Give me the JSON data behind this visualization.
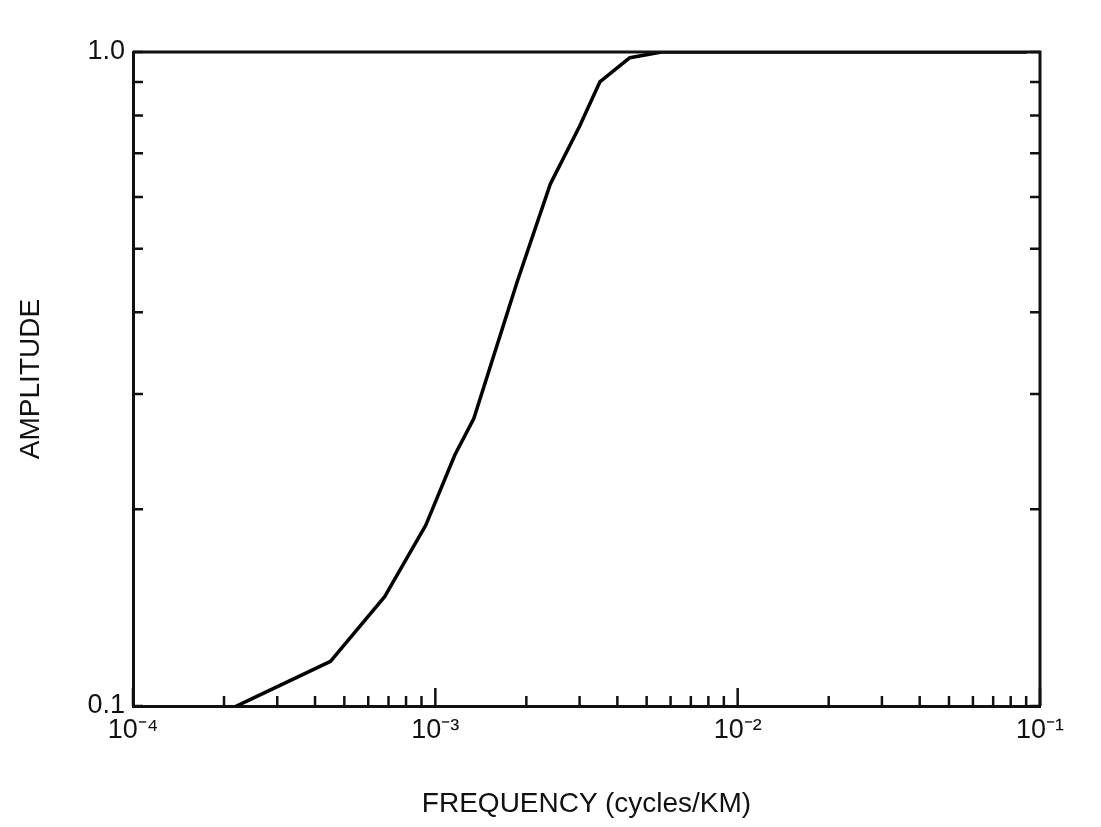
{
  "chart_data": {
    "type": "line",
    "xlabel": "FREQUENCY (cycles/KM)",
    "ylabel": "AMPLITUDE",
    "log": "xy",
    "grid": false,
    "legend": false,
    "marker": "none",
    "line_style": "solid",
    "xlim": [
      0.0001,
      0.1
    ],
    "ylim": [
      0.1,
      1
    ],
    "xticks": [
      {
        "value": 0.0001,
        "label": "10⁻⁴"
      },
      {
        "value": 0.0002,
        "label": null
      },
      {
        "value": 0.0003,
        "label": null
      },
      {
        "value": 0.0004,
        "label": null
      },
      {
        "value": 0.0005,
        "label": null
      },
      {
        "value": 0.0006,
        "label": null
      },
      {
        "value": 0.0007,
        "label": null
      },
      {
        "value": 0.0008,
        "label": null
      },
      {
        "value": 0.0009,
        "label": null
      },
      {
        "value": 0.001,
        "label": "10⁻³"
      },
      {
        "value": 0.002,
        "label": null
      },
      {
        "value": 0.003,
        "label": null
      },
      {
        "value": 0.004,
        "label": null
      },
      {
        "value": 0.005,
        "label": null
      },
      {
        "value": 0.006,
        "label": null
      },
      {
        "value": 0.007,
        "label": null
      },
      {
        "value": 0.008,
        "label": null
      },
      {
        "value": 0.009,
        "label": null
      },
      {
        "value": 0.01,
        "label": "10⁻²"
      },
      {
        "value": 0.02,
        "label": null
      },
      {
        "value": 0.03,
        "label": null
      },
      {
        "value": 0.04,
        "label": null
      },
      {
        "value": 0.05,
        "label": null
      },
      {
        "value": 0.06,
        "label": null
      },
      {
        "value": 0.07,
        "label": null
      },
      {
        "value": 0.08,
        "label": null
      },
      {
        "value": 0.09,
        "label": null
      },
      {
        "value": 0.1,
        "label": "10⁻¹"
      }
    ],
    "yticks": [
      0.1,
      {
        "value": 0.2,
        "label": null
      },
      {
        "value": 0.3,
        "label": null
      },
      {
        "value": 0.4,
        "label": null
      },
      {
        "value": 0.5,
        "label": null
      },
      {
        "value": 0.6,
        "label": null
      },
      {
        "value": 0.7,
        "label": null
      },
      {
        "value": 0.8,
        "label": null
      },
      {
        "value": 0.9,
        "label": null
      },
      {
        "value": 1,
        "label": "1.0"
      }
    ],
    "series": [
      {
        "color": "#000000",
        "x": [
          0.00022,
          0.00045,
          0.00068,
          0.00093,
          0.00116,
          0.00134,
          0.00187,
          0.0024,
          0.003,
          0.0035,
          0.0044,
          0.0056,
          0.09
        ],
        "values": [
          0.1,
          0.117,
          0.147,
          0.189,
          0.242,
          0.275,
          0.447,
          0.628,
          0.77,
          0.9,
          0.98,
          1,
          1
        ]
      }
    ]
  }
}
